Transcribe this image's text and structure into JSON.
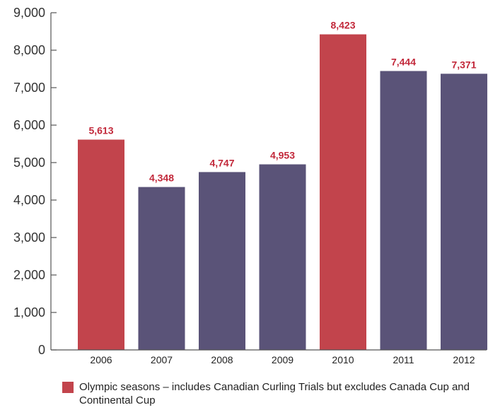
{
  "chart_data": {
    "type": "bar",
    "categories": [
      "2006",
      "2007",
      "2008",
      "2009",
      "2010",
      "2011",
      "2012"
    ],
    "values": [
      5613,
      4348,
      4747,
      4953,
      8423,
      7444,
      7371
    ],
    "value_labels": [
      "5,613",
      "4,348",
      "4,747",
      "4,953",
      "8,423",
      "7,444",
      "7,371"
    ],
    "olympic_season": [
      true,
      false,
      false,
      false,
      true,
      false,
      false
    ],
    "ylim": [
      0,
      9000
    ],
    "yticks": [
      0,
      1000,
      2000,
      3000,
      4000,
      5000,
      6000,
      7000,
      8000,
      9000
    ],
    "ytick_labels": [
      "0",
      "1,000",
      "2,000",
      "3,000",
      "4,000",
      "5,000",
      "6,000",
      "7,000",
      "8,000",
      "9,000"
    ],
    "grid": false,
    "legend_position": "bottom-left"
  },
  "legend": {
    "text": "Olympic seasons – includes Canadian Curling Trials but excludes Canada Cup and Continental Cup"
  },
  "colors": {
    "olympic_bar": "#c2444c",
    "regular_bar": "#5a5378",
    "data_label": "#c2283a",
    "axis": "#555555"
  }
}
